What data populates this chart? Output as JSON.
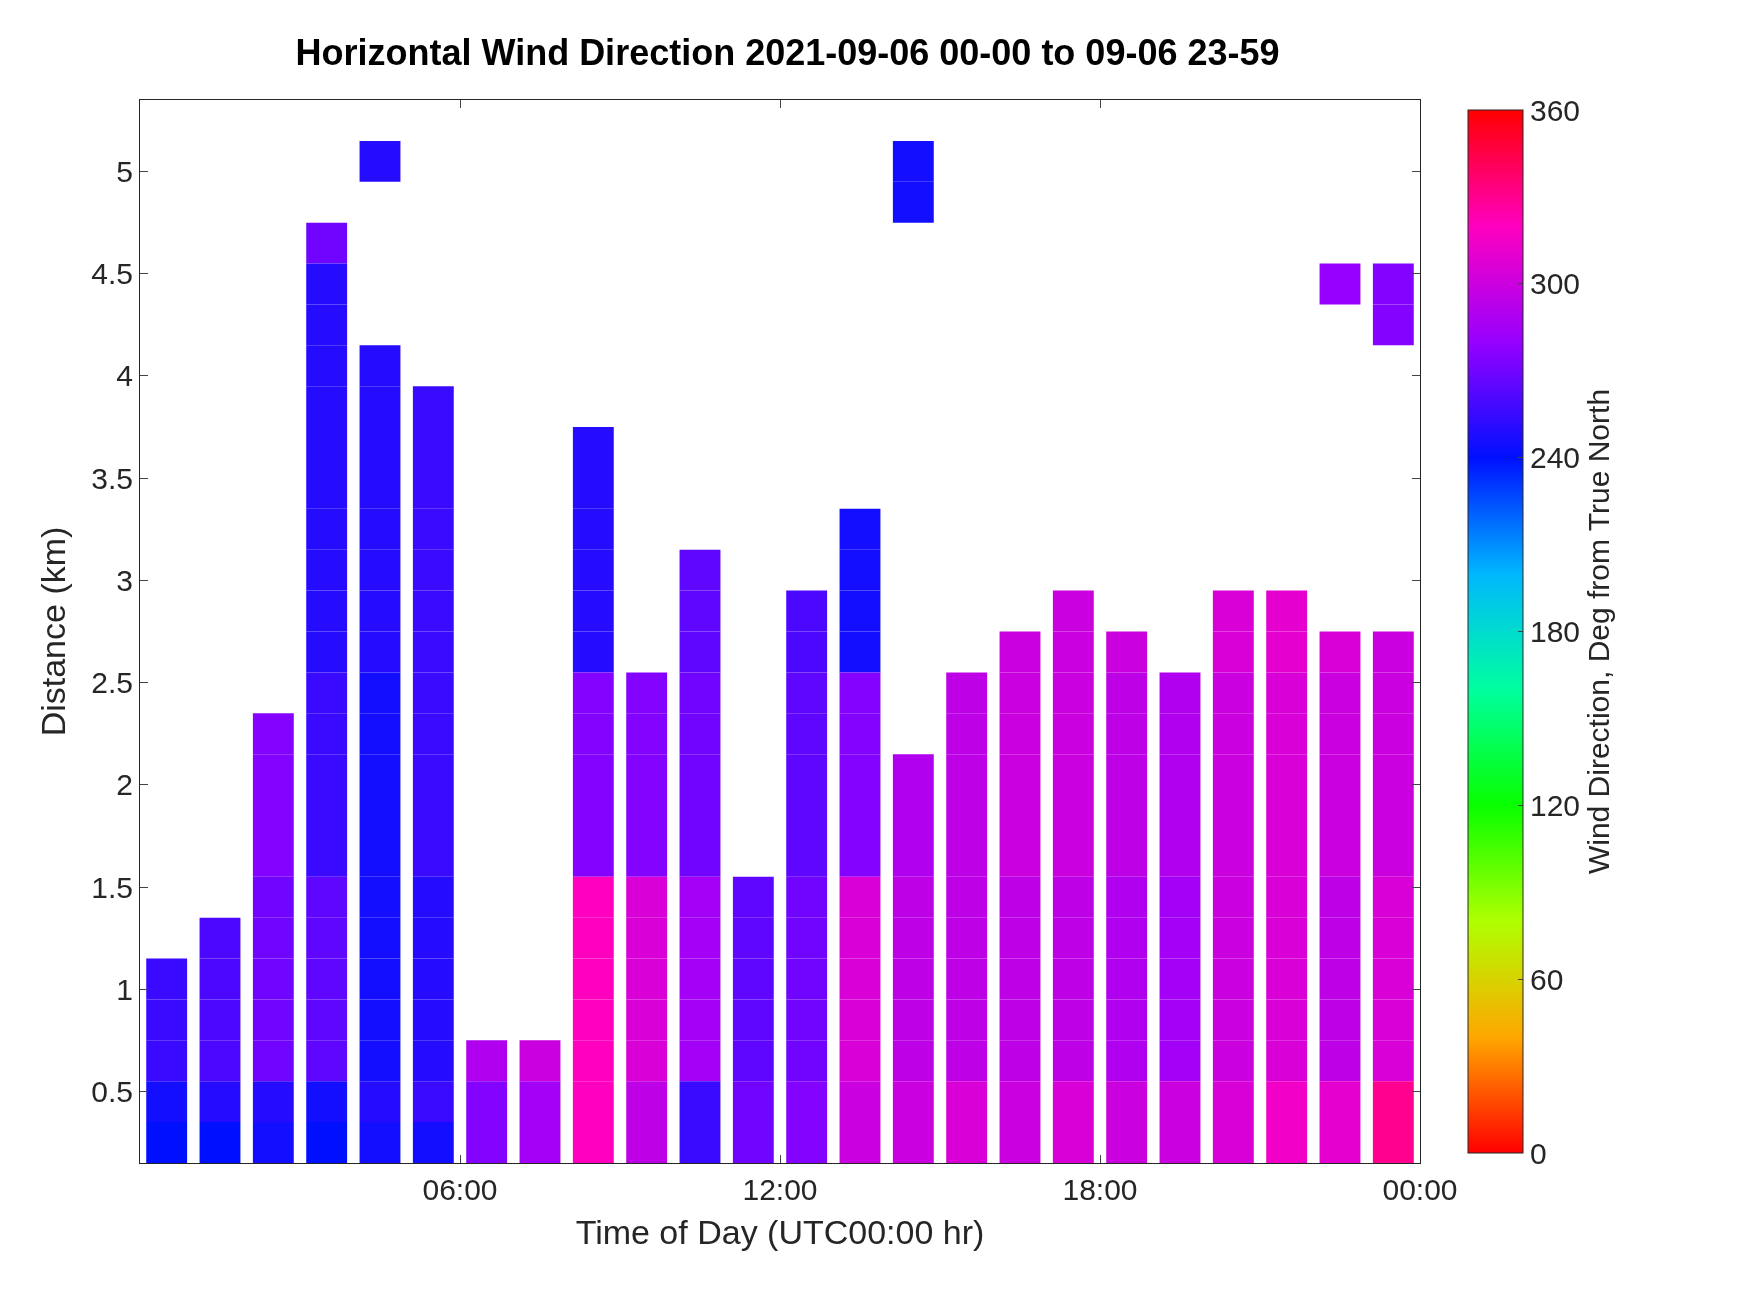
{
  "chart_data": {
    "type": "scatter",
    "marker": "square",
    "title": "Horizontal Wind Direction 2021-09-06 00-00 to 09-06 23-59",
    "xlabel": "Time of Day (UTC00:00 hr)",
    "ylabel": "Distance (km)",
    "clabel": "Wind Direction, Deg from True North",
    "x": [
      4.5,
      14.5,
      14.5,
      3.5,
      3.5,
      22.5,
      23.5,
      3.5,
      23.5,
      3.5,
      4.5,
      3.5,
      4.5,
      5.5,
      3.5,
      4.5,
      5.5,
      8.5,
      3.5,
      4.5,
      5.5,
      8.5,
      3.5,
      4.5,
      5.5,
      8.5,
      13.5,
      3.5,
      4.5,
      5.5,
      8.5,
      10.5,
      13.5,
      3.5,
      4.5,
      5.5,
      8.5,
      10.5,
      12.5,
      13.5,
      17.5,
      20.5,
      21.5,
      3.5,
      4.5,
      5.5,
      8.5,
      10.5,
      12.5,
      13.5,
      16.5,
      17.5,
      18.5,
      20.5,
      21.5,
      22.5,
      23.5,
      3.5,
      4.5,
      5.5,
      8.5,
      9.5,
      10.5,
      12.5,
      13.5,
      15.5,
      16.5,
      17.5,
      18.5,
      19.5,
      20.5,
      21.5,
      22.5,
      23.5,
      2.5,
      3.5,
      4.5,
      5.5,
      8.5,
      9.5,
      10.5,
      12.5,
      13.5,
      15.5,
      16.5,
      17.5,
      18.5,
      19.5,
      20.5,
      21.5,
      22.5,
      23.5,
      2.5,
      3.5,
      4.5,
      5.5,
      8.5,
      9.5,
      10.5,
      12.5,
      13.5,
      14.5,
      15.5,
      16.5,
      17.5,
      18.5,
      19.5,
      20.5,
      21.5,
      22.5,
      23.5,
      2.5,
      3.5,
      4.5,
      5.5,
      8.5,
      9.5,
      10.5,
      12.5,
      13.5,
      14.5,
      15.5,
      16.5,
      17.5,
      18.5,
      19.5,
      20.5,
      21.5,
      22.5,
      23.5,
      2.5,
      3.5,
      4.5,
      5.5,
      8.5,
      9.5,
      10.5,
      12.5,
      13.5,
      14.5,
      15.5,
      16.5,
      17.5,
      18.5,
      19.5,
      20.5,
      21.5,
      22.5,
      23.5,
      2.5,
      3.5,
      4.5,
      5.5,
      8.5,
      9.5,
      10.5,
      11.5,
      12.5,
      13.5,
      14.5,
      15.5,
      16.5,
      17.5,
      18.5,
      19.5,
      20.5,
      21.5,
      22.5,
      23.5,
      1.5,
      2.5,
      3.5,
      4.5,
      5.5,
      8.5,
      9.5,
      10.5,
      11.5,
      12.5,
      13.5,
      14.5,
      15.5,
      16.5,
      17.5,
      18.5,
      19.5,
      20.5,
      21.5,
      22.5,
      23.5,
      0.5,
      1.5,
      2.5,
      3.5,
      4.5,
      5.5,
      8.5,
      9.5,
      10.5,
      11.5,
      12.5,
      13.5,
      14.5,
      15.5,
      16.5,
      17.5,
      18.5,
      19.5,
      20.5,
      21.5,
      22.5,
      23.5,
      0.5,
      1.5,
      2.5,
      3.5,
      4.5,
      5.5,
      8.5,
      9.5,
      10.5,
      11.5,
      12.5,
      13.5,
      14.5,
      15.5,
      16.5,
      17.5,
      18.5,
      19.5,
      20.5,
      21.5,
      22.5,
      23.5,
      0.5,
      1.5,
      2.5,
      3.5,
      4.5,
      5.5,
      6.5,
      7.5,
      8.5,
      9.5,
      10.5,
      11.5,
      12.5,
      13.5,
      14.5,
      15.5,
      16.5,
      17.5,
      18.5,
      19.5,
      20.5,
      21.5,
      22.5,
      23.5,
      0.5,
      1.5,
      2.5,
      3.5,
      4.5,
      5.5,
      6.5,
      7.5,
      8.5,
      9.5,
      10.5,
      11.5,
      12.5,
      13.5,
      14.5,
      15.5,
      16.5,
      17.5,
      18.5,
      19.5,
      20.5,
      21.5,
      22.5,
      23.5,
      0.5,
      1.5,
      2.5,
      3.5,
      4.5,
      5.5,
      6.5,
      7.5,
      8.5,
      9.5,
      10.5,
      11.5,
      12.5,
      13.5,
      14.5,
      15.5,
      16.5,
      17.5,
      18.5,
      19.5,
      20.5,
      21.5,
      22.5,
      23.5
    ],
    "values": [
      5.05,
      5.05,
      4.85,
      4.65,
      4.45,
      4.45,
      4.45,
      4.25,
      4.25,
      4.05,
      4.05,
      3.85,
      3.85,
      3.85,
      3.65,
      3.65,
      3.65,
      3.65,
      3.45,
      3.45,
      3.45,
      3.45,
      3.25,
      3.25,
      3.25,
      3.25,
      3.25,
      3.05,
      3.05,
      3.05,
      3.05,
      3.05,
      3.05,
      2.85,
      2.85,
      2.85,
      2.85,
      2.85,
      2.85,
      2.85,
      2.85,
      2.85,
      2.85,
      2.65,
      2.65,
      2.65,
      2.65,
      2.65,
      2.65,
      2.65,
      2.65,
      2.65,
      2.65,
      2.65,
      2.65,
      2.65,
      2.65,
      2.45,
      2.45,
      2.45,
      2.45,
      2.45,
      2.45,
      2.45,
      2.45,
      2.45,
      2.45,
      2.45,
      2.45,
      2.45,
      2.45,
      2.45,
      2.45,
      2.45,
      2.25,
      2.25,
      2.25,
      2.25,
      2.25,
      2.25,
      2.25,
      2.25,
      2.25,
      2.25,
      2.25,
      2.25,
      2.25,
      2.25,
      2.25,
      2.25,
      2.25,
      2.25,
      2.05,
      2.05,
      2.05,
      2.05,
      2.05,
      2.05,
      2.05,
      2.05,
      2.05,
      2.05,
      2.05,
      2.05,
      2.05,
      2.05,
      2.05,
      2.05,
      2.05,
      2.05,
      2.05,
      1.85,
      1.85,
      1.85,
      1.85,
      1.85,
      1.85,
      1.85,
      1.85,
      1.85,
      1.85,
      1.85,
      1.85,
      1.85,
      1.85,
      1.85,
      1.85,
      1.85,
      1.85,
      1.85,
      1.65,
      1.65,
      1.65,
      1.65,
      1.65,
      1.65,
      1.65,
      1.65,
      1.65,
      1.65,
      1.65,
      1.65,
      1.65,
      1.65,
      1.65,
      1.65,
      1.65,
      1.65,
      1.65,
      1.45,
      1.45,
      1.45,
      1.45,
      1.45,
      1.45,
      1.45,
      1.45,
      1.45,
      1.45,
      1.45,
      1.45,
      1.45,
      1.45,
      1.45,
      1.45,
      1.45,
      1.45,
      1.45,
      1.45,
      1.25,
      1.25,
      1.25,
      1.25,
      1.25,
      1.25,
      1.25,
      1.25,
      1.25,
      1.25,
      1.25,
      1.25,
      1.25,
      1.25,
      1.25,
      1.25,
      1.25,
      1.25,
      1.25,
      1.25,
      1.25,
      1.05,
      1.05,
      1.05,
      1.05,
      1.05,
      1.05,
      1.05,
      1.05,
      1.05,
      1.05,
      1.05,
      1.05,
      1.05,
      1.05,
      1.05,
      1.05,
      1.05,
      1.05,
      1.05,
      1.05,
      1.05,
      1.05,
      0.85,
      0.85,
      0.85,
      0.85,
      0.85,
      0.85,
      0.85,
      0.85,
      0.85,
      0.85,
      0.85,
      0.85,
      0.85,
      0.85,
      0.85,
      0.85,
      0.85,
      0.85,
      0.85,
      0.85,
      0.85,
      0.85,
      0.65,
      0.65,
      0.65,
      0.65,
      0.65,
      0.65,
      0.65,
      0.65,
      0.65,
      0.65,
      0.65,
      0.65,
      0.65,
      0.65,
      0.65,
      0.65,
      0.65,
      0.65,
      0.65,
      0.65,
      0.65,
      0.65,
      0.65,
      0.65,
      0.45,
      0.45,
      0.45,
      0.45,
      0.45,
      0.45,
      0.45,
      0.45,
      0.45,
      0.45,
      0.45,
      0.45,
      0.45,
      0.45,
      0.45,
      0.45,
      0.45,
      0.45,
      0.45,
      0.45,
      0.45,
      0.45,
      0.45,
      0.45,
      0.25,
      0.25,
      0.25,
      0.25,
      0.25,
      0.25,
      0.25,
      0.25,
      0.25,
      0.25,
      0.25,
      0.25,
      0.25,
      0.25,
      0.25,
      0.25,
      0.25,
      0.25,
      0.25,
      0.25,
      0.25,
      0.25,
      0.25,
      0.25
    ],
    "cvalues": [
      250,
      245,
      245,
      270,
      250,
      280,
      275,
      250,
      275,
      250,
      250,
      250,
      250,
      255,
      250,
      250,
      255,
      250,
      250,
      250,
      255,
      250,
      250,
      250,
      255,
      250,
      245,
      250,
      250,
      255,
      250,
      265,
      245,
      250,
      250,
      255,
      250,
      265,
      260,
      245,
      300,
      305,
      310,
      250,
      250,
      255,
      250,
      265,
      260,
      245,
      300,
      300,
      300,
      305,
      310,
      305,
      300,
      255,
      245,
      255,
      275,
      275,
      270,
      265,
      275,
      295,
      300,
      300,
      295,
      290,
      300,
      305,
      300,
      300,
      275,
      255,
      245,
      255,
      275,
      275,
      270,
      265,
      275,
      295,
      300,
      300,
      295,
      290,
      300,
      305,
      300,
      300,
      275,
      255,
      245,
      255,
      275,
      275,
      270,
      265,
      275,
      290,
      295,
      300,
      300,
      295,
      290,
      300,
      305,
      300,
      300,
      275,
      255,
      245,
      255,
      275,
      275,
      270,
      265,
      275,
      290,
      295,
      300,
      300,
      295,
      290,
      300,
      305,
      300,
      300,
      275,
      255,
      245,
      255,
      275,
      275,
      270,
      265,
      275,
      290,
      295,
      300,
      300,
      295,
      290,
      300,
      305,
      300,
      300,
      270,
      265,
      245,
      250,
      320,
      305,
      285,
      265,
      270,
      305,
      295,
      295,
      295,
      295,
      290,
      285,
      300,
      305,
      295,
      305,
      260,
      270,
      265,
      245,
      250,
      320,
      305,
      285,
      265,
      270,
      305,
      295,
      295,
      295,
      295,
      290,
      285,
      300,
      305,
      295,
      305,
      255,
      260,
      270,
      265,
      245,
      250,
      320,
      305,
      285,
      265,
      270,
      305,
      295,
      295,
      295,
      295,
      290,
      285,
      300,
      305,
      295,
      305,
      255,
      260,
      270,
      265,
      245,
      250,
      320,
      305,
      285,
      265,
      270,
      305,
      295,
      295,
      295,
      295,
      290,
      285,
      300,
      305,
      295,
      305,
      255,
      260,
      270,
      265,
      245,
      250,
      290,
      300,
      320,
      305,
      285,
      265,
      270,
      305,
      295,
      295,
      295,
      295,
      290,
      285,
      300,
      305,
      295,
      305,
      245,
      250,
      250,
      245,
      250,
      255,
      275,
      285,
      320,
      295,
      255,
      270,
      275,
      300,
      300,
      305,
      300,
      305,
      300,
      300,
      305,
      315,
      310,
      330,
      240,
      240,
      245,
      240,
      245,
      245,
      275,
      285,
      320,
      295,
      255,
      270,
      275,
      300,
      300,
      305,
      300,
      305,
      300,
      300,
      305,
      315,
      310,
      330
    ],
    "xlim": [
      0,
      24
    ],
    "xticks": [
      {
        "value": 6,
        "label": "06:00"
      },
      {
        "value": 12,
        "label": "12:00"
      },
      {
        "value": 18,
        "label": "18:00"
      },
      {
        "value": 24,
        "label": "00:00"
      }
    ],
    "ylim": [
      0.15,
      5.35
    ],
    "yticks": [
      0.5,
      1,
      1.5,
      2,
      2.5,
      3,
      3.5,
      4,
      4.5,
      5
    ],
    "clim": [
      0,
      360
    ],
    "cticks": [
      0,
      60,
      120,
      180,
      240,
      300,
      360
    ]
  }
}
